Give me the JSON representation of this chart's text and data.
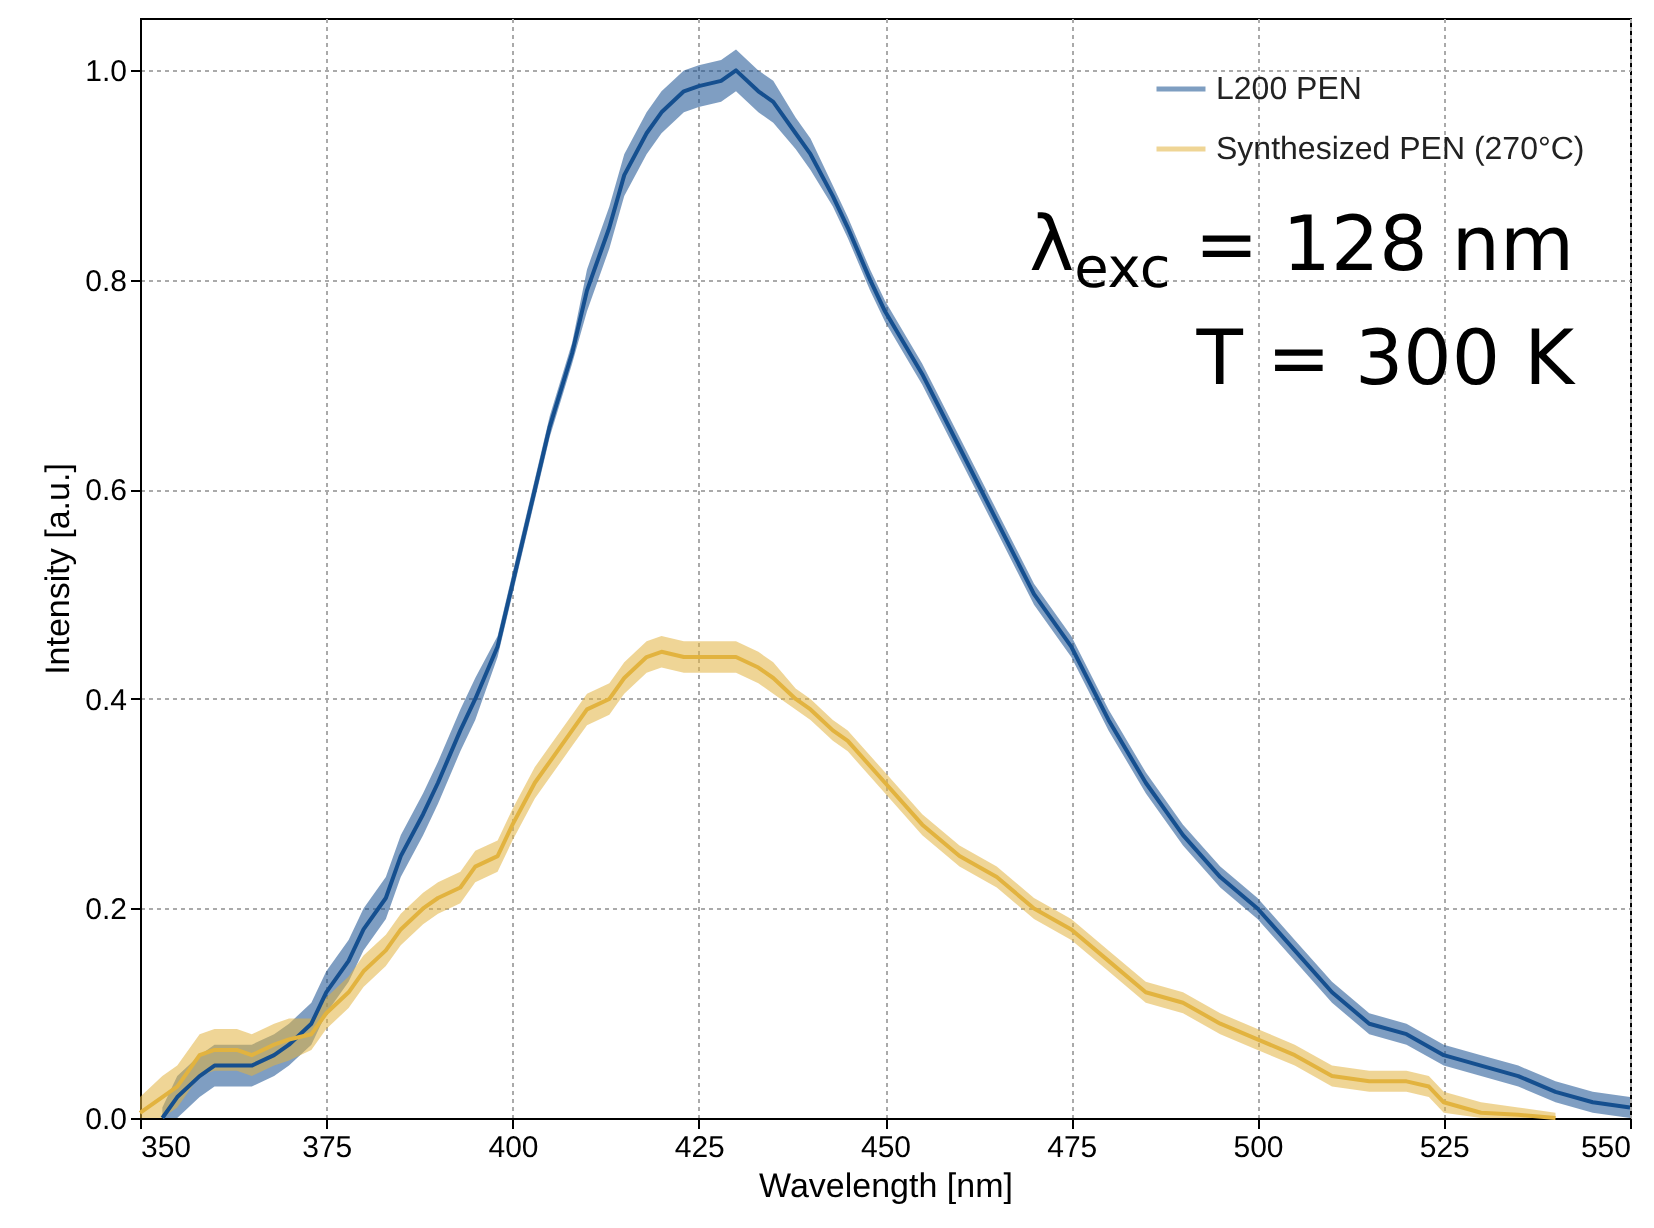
{
  "chart_data": {
    "type": "line",
    "xlabel": "Wavelength [nm]",
    "ylabel": "Intensity [a.u.]",
    "xlim": [
      350,
      550
    ],
    "xticks": [
      350,
      375,
      400,
      425,
      450,
      475,
      500,
      525,
      550
    ],
    "ylim": [
      0,
      1.05
    ],
    "yticks": [
      {
        "value": 0,
        "label": "0.0"
      },
      0.2,
      0.4,
      0.6,
      0.8,
      {
        "value": 1,
        "label": "1.0"
      }
    ],
    "grid": true,
    "legend": "top right",
    "annotations": [
      "λ$_{exc}$ = 128 nm",
      "T = 300 K"
    ],
    "series": [
      {
        "name": "L200 PEN",
        "color": "#154f8f",
        "x": [
          353,
          355,
          358,
          360,
          365,
          368,
          370,
          373,
          375,
          378,
          380,
          383,
          385,
          388,
          390,
          393,
          395,
          398,
          400,
          403,
          405,
          408,
          410,
          413,
          415,
          418,
          420,
          423,
          425,
          428,
          430,
          433,
          435,
          438,
          440,
          443,
          445,
          448,
          450,
          455,
          460,
          465,
          470,
          475,
          480,
          485,
          490,
          495,
          500,
          505,
          510,
          515,
          520,
          525,
          530,
          535,
          540,
          545,
          550
        ],
        "values": [
          0.0,
          0.02,
          0.04,
          0.05,
          0.05,
          0.06,
          0.07,
          0.09,
          0.12,
          0.15,
          0.18,
          0.21,
          0.25,
          0.29,
          0.32,
          0.37,
          0.4,
          0.45,
          0.51,
          0.6,
          0.66,
          0.73,
          0.79,
          0.85,
          0.9,
          0.94,
          0.96,
          0.98,
          0.985,
          0.99,
          1.0,
          0.98,
          0.97,
          0.94,
          0.92,
          0.88,
          0.85,
          0.8,
          0.77,
          0.71,
          0.64,
          0.57,
          0.5,
          0.45,
          0.38,
          0.32,
          0.27,
          0.23,
          0.2,
          0.16,
          0.12,
          0.09,
          0.08,
          0.06,
          0.05,
          0.04,
          0.025,
          0.015,
          0.01
        ],
        "lower": [
          0.0,
          0.0,
          0.02,
          0.03,
          0.03,
          0.04,
          0.05,
          0.07,
          0.1,
          0.13,
          0.16,
          0.19,
          0.23,
          0.27,
          0.3,
          0.35,
          0.38,
          0.44,
          0.5,
          0.59,
          0.65,
          0.72,
          0.77,
          0.83,
          0.88,
          0.92,
          0.94,
          0.96,
          0.965,
          0.97,
          0.98,
          0.96,
          0.95,
          0.925,
          0.905,
          0.87,
          0.84,
          0.79,
          0.76,
          0.7,
          0.63,
          0.56,
          0.49,
          0.44,
          0.37,
          0.31,
          0.26,
          0.22,
          0.19,
          0.15,
          0.11,
          0.08,
          0.07,
          0.05,
          0.04,
          0.03,
          0.015,
          0.005,
          0.0
        ],
        "upper": [
          0.01,
          0.04,
          0.06,
          0.07,
          0.07,
          0.08,
          0.09,
          0.11,
          0.14,
          0.17,
          0.2,
          0.23,
          0.27,
          0.31,
          0.34,
          0.39,
          0.42,
          0.46,
          0.52,
          0.61,
          0.67,
          0.74,
          0.81,
          0.87,
          0.92,
          0.96,
          0.98,
          1.0,
          1.005,
          1.01,
          1.02,
          1.0,
          0.99,
          0.955,
          0.935,
          0.89,
          0.86,
          0.81,
          0.78,
          0.72,
          0.65,
          0.58,
          0.51,
          0.46,
          0.39,
          0.33,
          0.28,
          0.24,
          0.21,
          0.17,
          0.13,
          0.1,
          0.09,
          0.07,
          0.06,
          0.05,
          0.035,
          0.025,
          0.02
        ]
      },
      {
        "name": "Synthesized PEN (270°C)",
        "color": "#e2b33f",
        "x": [
          350,
          353,
          355,
          358,
          360,
          363,
          365,
          368,
          370,
          373,
          375,
          378,
          380,
          383,
          385,
          388,
          390,
          393,
          395,
          398,
          400,
          403,
          405,
          408,
          410,
          413,
          415,
          418,
          420,
          423,
          425,
          428,
          430,
          433,
          435,
          438,
          440,
          443,
          445,
          450,
          455,
          460,
          465,
          470,
          475,
          480,
          485,
          490,
          495,
          500,
          505,
          510,
          515,
          520,
          523,
          525,
          530,
          535,
          540
        ],
        "values": [
          0.005,
          0.02,
          0.03,
          0.06,
          0.065,
          0.065,
          0.06,
          0.07,
          0.075,
          0.08,
          0.1,
          0.12,
          0.14,
          0.16,
          0.18,
          0.2,
          0.21,
          0.22,
          0.24,
          0.25,
          0.28,
          0.32,
          0.34,
          0.37,
          0.39,
          0.4,
          0.42,
          0.44,
          0.445,
          0.44,
          0.44,
          0.44,
          0.44,
          0.43,
          0.42,
          0.4,
          0.39,
          0.37,
          0.36,
          0.32,
          0.28,
          0.25,
          0.23,
          0.2,
          0.18,
          0.15,
          0.12,
          0.11,
          0.09,
          0.075,
          0.06,
          0.04,
          0.035,
          0.035,
          0.03,
          0.015,
          0.005,
          0.003,
          0.0
        ],
        "lower": [
          0.0,
          0.0,
          0.01,
          0.04,
          0.045,
          0.045,
          0.04,
          0.05,
          0.055,
          0.065,
          0.085,
          0.105,
          0.125,
          0.145,
          0.165,
          0.185,
          0.195,
          0.205,
          0.225,
          0.235,
          0.265,
          0.305,
          0.325,
          0.355,
          0.375,
          0.385,
          0.405,
          0.425,
          0.43,
          0.425,
          0.425,
          0.425,
          0.425,
          0.415,
          0.405,
          0.39,
          0.38,
          0.36,
          0.35,
          0.31,
          0.27,
          0.24,
          0.22,
          0.19,
          0.17,
          0.14,
          0.11,
          0.1,
          0.08,
          0.065,
          0.05,
          0.03,
          0.025,
          0.025,
          0.02,
          0.005,
          0.0,
          0.0,
          0.0
        ],
        "upper": [
          0.02,
          0.04,
          0.05,
          0.08,
          0.085,
          0.085,
          0.08,
          0.09,
          0.095,
          0.095,
          0.115,
          0.135,
          0.155,
          0.175,
          0.195,
          0.215,
          0.225,
          0.235,
          0.255,
          0.265,
          0.295,
          0.335,
          0.355,
          0.385,
          0.405,
          0.415,
          0.435,
          0.455,
          0.46,
          0.455,
          0.455,
          0.455,
          0.455,
          0.445,
          0.435,
          0.41,
          0.4,
          0.38,
          0.37,
          0.33,
          0.29,
          0.26,
          0.24,
          0.21,
          0.19,
          0.16,
          0.13,
          0.12,
          0.1,
          0.085,
          0.07,
          0.05,
          0.045,
          0.045,
          0.04,
          0.025,
          0.015,
          0.01,
          0.005
        ]
      }
    ]
  }
}
